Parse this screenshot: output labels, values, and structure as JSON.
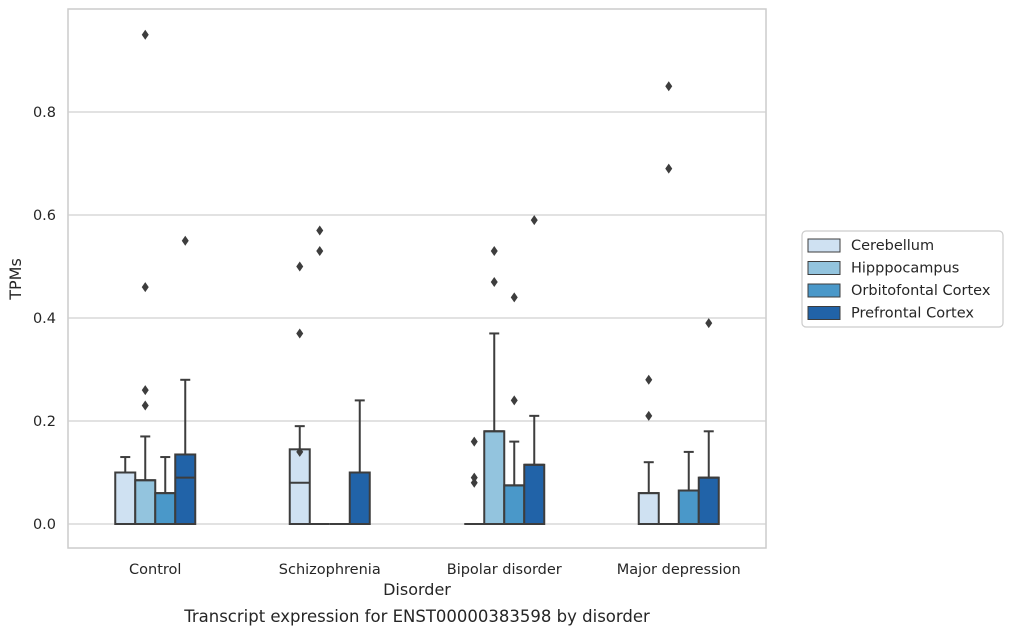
{
  "chart_data": {
    "type": "boxplot",
    "caption": "Transcript expression for ENST00000383598 by disorder",
    "xlabel": "Disorder",
    "ylabel": "TPMs",
    "ylim": [
      -0.045,
      0.99
    ],
    "yticks": [
      0.0,
      0.2,
      0.4,
      0.6,
      0.8
    ],
    "ytick_labels": [
      "0.0",
      "0.2",
      "0.4",
      "0.6",
      "0.8"
    ],
    "grid": true,
    "legend_position": "right",
    "categories": [
      "Control",
      "Schizophrenia",
      "Bipolar disorder",
      "Major depression"
    ],
    "series": [
      {
        "name": "Cerebellum",
        "color": "#cfe1f2",
        "boxes": [
          {
            "min": 0.0,
            "q1": 0.0,
            "median": 0.1,
            "q3": 0.1,
            "max": 0.13,
            "outliers": []
          },
          {
            "min": 0.0,
            "q1": 0.0,
            "median": 0.08,
            "q3": 0.145,
            "max": 0.19,
            "outliers": [
              0.37,
              0.5,
              0.14
            ]
          },
          {
            "min": 0.0,
            "q1": 0.0,
            "median": 0.0,
            "q3": 0.0,
            "max": 0.0,
            "outliers": [
              0.08,
              0.09,
              0.16
            ]
          },
          {
            "min": 0.0,
            "q1": 0.0,
            "median": 0.06,
            "q3": 0.06,
            "max": 0.12,
            "outliers": [
              0.21,
              0.28
            ]
          }
        ]
      },
      {
        "name": "Hipppocampus",
        "color": "#93c4de",
        "boxes": [
          {
            "min": 0.0,
            "q1": 0.0,
            "median": 0.085,
            "q3": 0.085,
            "max": 0.17,
            "outliers": [
              0.23,
              0.26,
              0.46,
              0.95
            ]
          },
          {
            "min": 0.0,
            "q1": 0.0,
            "median": 0.0,
            "q3": 0.0,
            "max": 0.0,
            "outliers": [
              0.53,
              0.57
            ]
          },
          {
            "min": 0.0,
            "q1": 0.0,
            "median": 0.18,
            "q3": 0.18,
            "max": 0.37,
            "outliers": [
              0.47,
              0.53
            ]
          },
          {
            "min": 0.0,
            "q1": 0.0,
            "median": 0.0,
            "q3": 0.0,
            "max": 0.0,
            "outliers": [
              0.69,
              0.85
            ]
          }
        ]
      },
      {
        "name": "Orbitofontal Cortex",
        "color": "#4a98c9",
        "boxes": [
          {
            "min": 0.0,
            "q1": 0.0,
            "median": 0.06,
            "q3": 0.06,
            "max": 0.13,
            "outliers": []
          },
          {
            "min": 0.0,
            "q1": 0.0,
            "median": 0.0,
            "q3": 0.0,
            "max": 0.0,
            "outliers": []
          },
          {
            "min": 0.0,
            "q1": 0.0,
            "median": 0.075,
            "q3": 0.075,
            "max": 0.16,
            "outliers": [
              0.24,
              0.44
            ]
          },
          {
            "min": 0.0,
            "q1": 0.0,
            "median": 0.065,
            "q3": 0.065,
            "max": 0.14,
            "outliers": []
          }
        ]
      },
      {
        "name": "Prefrontal Cortex",
        "color": "#2163a8",
        "boxes": [
          {
            "min": 0.0,
            "q1": 0.0,
            "median": 0.09,
            "q3": 0.135,
            "max": 0.28,
            "outliers": [
              0.55
            ]
          },
          {
            "min": 0.0,
            "q1": 0.0,
            "median": 0.1,
            "q3": 0.1,
            "max": 0.24,
            "outliers": []
          },
          {
            "min": 0.0,
            "q1": 0.0,
            "median": 0.115,
            "q3": 0.115,
            "max": 0.21,
            "outliers": [
              0.59
            ]
          },
          {
            "min": 0.0,
            "q1": 0.0,
            "median": 0.09,
            "q3": 0.09,
            "max": 0.18,
            "outliers": [
              0.39
            ]
          }
        ]
      }
    ]
  }
}
